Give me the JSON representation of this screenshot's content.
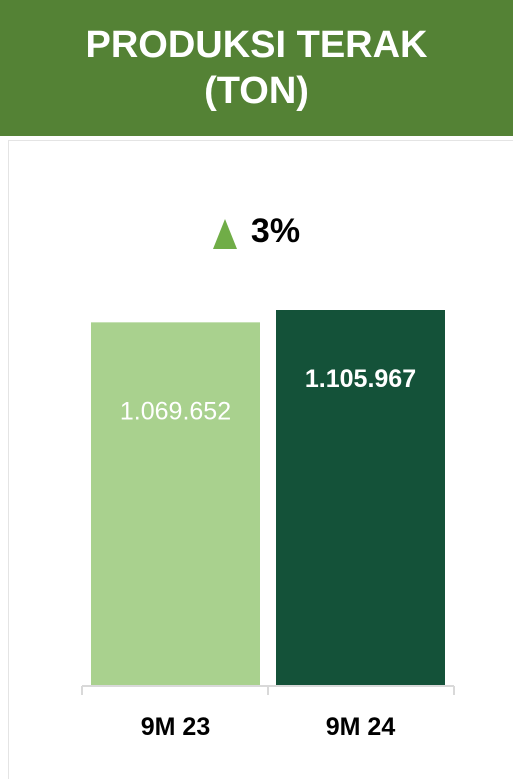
{
  "header": {
    "line1": "PRODUKSI TERAK",
    "line2": "(TON)"
  },
  "change": {
    "text": "3%",
    "icon": "up-triangle-icon",
    "color": "#70ad47"
  },
  "colors": {
    "header": "#548235",
    "bar_9m23": "#a9d18e",
    "bar_9m24": "#145239"
  },
  "chart_data": {
    "type": "bar",
    "title": "PRODUKSI TERAK (TON)",
    "categories": [
      "9M 23",
      "9M 24"
    ],
    "values": [
      1069652,
      1105967
    ],
    "value_labels": [
      "1.069.652",
      "1.105.967"
    ],
    "ylim": [
      0,
      1105967
    ],
    "grid": false,
    "legend": "none"
  }
}
